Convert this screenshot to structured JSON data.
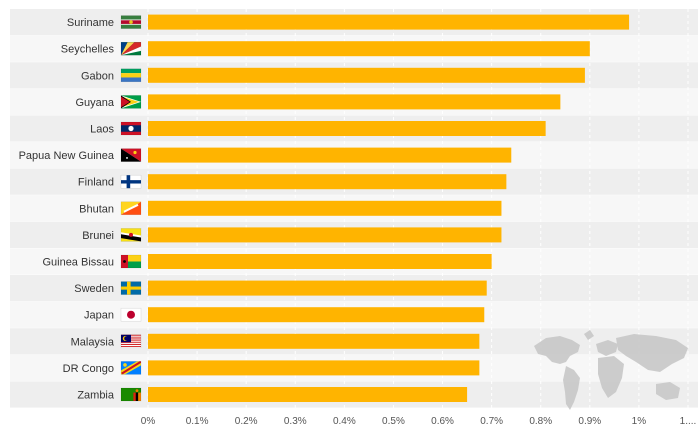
{
  "chart_data": {
    "type": "bar",
    "orientation": "horizontal",
    "categories": [
      "Suriname",
      "Seychelles",
      "Gabon",
      "Guyana",
      "Laos",
      "Papua New Guinea",
      "Finland",
      "Bhutan",
      "Brunei",
      "Guinea Bissau",
      "Sweden",
      "Japan",
      "Malaysia",
      "DR Congo",
      "Zambia"
    ],
    "values": [
      0.98,
      0.9,
      0.89,
      0.84,
      0.81,
      0.74,
      0.73,
      0.72,
      0.72,
      0.7,
      0.69,
      0.685,
      0.675,
      0.675,
      0.65
    ],
    "x_ticks": [
      "0%",
      "0.1%",
      "0.2%",
      "0.3%",
      "0.4%",
      "0.5%",
      "0.6%",
      "0.7%",
      "0.8%",
      "0.9%",
      "1%",
      "1...."
    ],
    "xlim": [
      0,
      1.1
    ],
    "grid": true,
    "bar_color": "#FFB400",
    "row_shading": "alternating",
    "flags": [
      "suriname-flag",
      "seychelles-flag",
      "gabon-flag",
      "guyana-flag",
      "laos-flag",
      "papua-new-guinea-flag",
      "finland-flag",
      "bhutan-flag",
      "brunei-flag",
      "guinea-bissau-flag",
      "sweden-flag",
      "japan-flag",
      "malaysia-flag",
      "dr-congo-flag",
      "zambia-flag"
    ],
    "decoration": "world-map-icon"
  }
}
